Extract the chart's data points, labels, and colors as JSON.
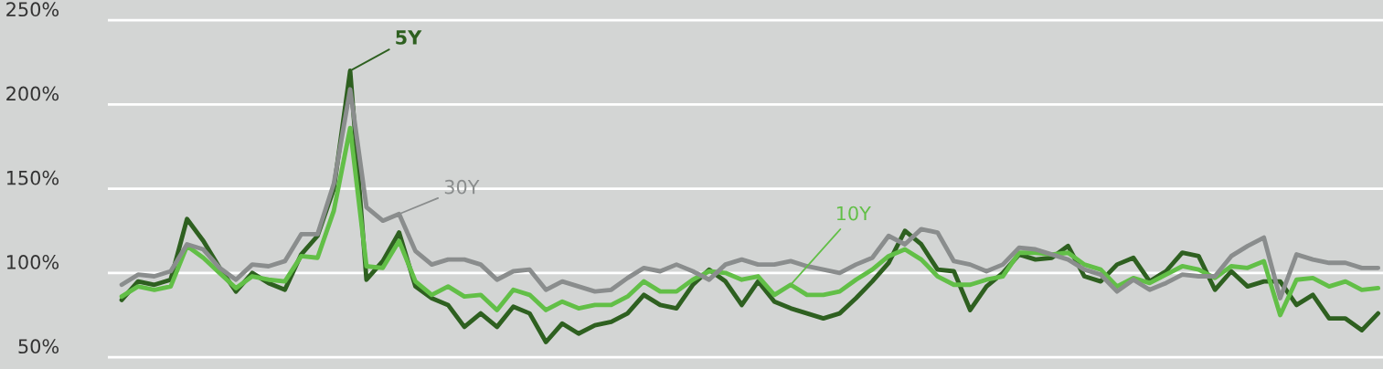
{
  "chart_data": {
    "type": "line",
    "categories": [
      null,
      null,
      null,
      null,
      null,
      null,
      null,
      null,
      null,
      null,
      null,
      null,
      null,
      null,
      null,
      null,
      null,
      null,
      null,
      null,
      null,
      null,
      null,
      null,
      null,
      null,
      null,
      null,
      null,
      null,
      null,
      null,
      null,
      null,
      null,
      null,
      null,
      null,
      null,
      null,
      null,
      null,
      null,
      null,
      null,
      null,
      null,
      null,
      null,
      null,
      null,
      null,
      null,
      null,
      null,
      null,
      null,
      null,
      null,
      null,
      null,
      null,
      null,
      null,
      null,
      null,
      null,
      null,
      null,
      null,
      null,
      null,
      null,
      null,
      null,
      null,
      null,
      null
    ],
    "series": [
      {
        "name": "5Y",
        "color": "#2e6020",
        "values": [
          84,
          95,
          93,
          96,
          132,
          119,
          103,
          89,
          100,
          94,
          90,
          111,
          122,
          150,
          220,
          96,
          107,
          124,
          92,
          85,
          81,
          68,
          76,
          68,
          80,
          76,
          59,
          70,
          64,
          69,
          71,
          76,
          87,
          81,
          79,
          93,
          102,
          95,
          81,
          95,
          83,
          79,
          76,
          73,
          76,
          85,
          95,
          106,
          125,
          117,
          102,
          101,
          78,
          92,
          100,
          111,
          108,
          109,
          116,
          98,
          95,
          105,
          109,
          95,
          101,
          112,
          110,
          90,
          101,
          92,
          95,
          95,
          81,
          87,
          73,
          73,
          66,
          76
        ]
      },
      {
        "name": "10Y",
        "color": "#62bf47",
        "values": [
          86,
          92,
          90,
          92,
          116,
          109,
          100,
          91,
          98,
          96,
          95,
          110,
          109,
          137,
          186,
          104,
          103,
          119,
          95,
          87,
          92,
          86,
          87,
          78,
          90,
          87,
          78,
          83,
          79,
          81,
          81,
          86,
          95,
          89,
          89,
          96,
          101,
          100,
          96,
          98,
          87,
          93,
          87,
          87,
          89,
          96,
          102,
          110,
          114,
          108,
          98,
          93,
          93,
          96,
          98,
          112,
          112,
          111,
          112,
          105,
          102,
          92,
          97,
          94,
          99,
          104,
          102,
          97,
          104,
          103,
          107,
          75,
          96,
          97,
          92,
          95,
          90,
          91
        ]
      },
      {
        "name": "30Y",
        "color": "#8a8d8d",
        "values": [
          93,
          99,
          98,
          101,
          117,
          114,
          103,
          96,
          105,
          104,
          107,
          123,
          123,
          153,
          209,
          139,
          131,
          135,
          113,
          105,
          108,
          108,
          105,
          96,
          101,
          102,
          90,
          95,
          92,
          89,
          90,
          97,
          103,
          101,
          105,
          101,
          96,
          105,
          108,
          105,
          105,
          107,
          104,
          102,
          100,
          105,
          109,
          122,
          117,
          126,
          124,
          107,
          105,
          101,
          105,
          115,
          114,
          111,
          108,
          102,
          99,
          89,
          96,
          90,
          94,
          99,
          98,
          98,
          110,
          116,
          121,
          85,
          111,
          108,
          106,
          106,
          103,
          103
        ]
      }
    ],
    "ylim": [
      43,
      262
    ],
    "yticks": [
      {
        "value": 50,
        "label": "50%"
      },
      {
        "value": 100,
        "label": "100%"
      },
      {
        "value": 150,
        "label": "150%"
      },
      {
        "value": 200,
        "label": "200%"
      },
      {
        "value": 250,
        "label": "250%"
      }
    ],
    "grid": "y",
    "legend": false,
    "marker": "none",
    "line_style": "solid"
  }
}
